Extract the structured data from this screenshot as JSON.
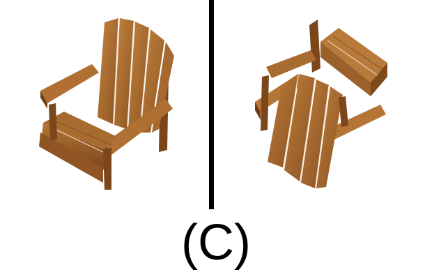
{
  "caption": "(C)",
  "panels": [
    {
      "icon": "adirondack-chair-upright-view-icon"
    },
    {
      "icon": "adirondack-chair-tilted-view-icon"
    }
  ],
  "colors": {
    "wood_light": "#b8773a",
    "wood_mid": "#9a5e28",
    "wood_dark": "#6e3f17",
    "gap": "#f4e6d2",
    "divider": "#000000",
    "background": "#ffffff"
  }
}
